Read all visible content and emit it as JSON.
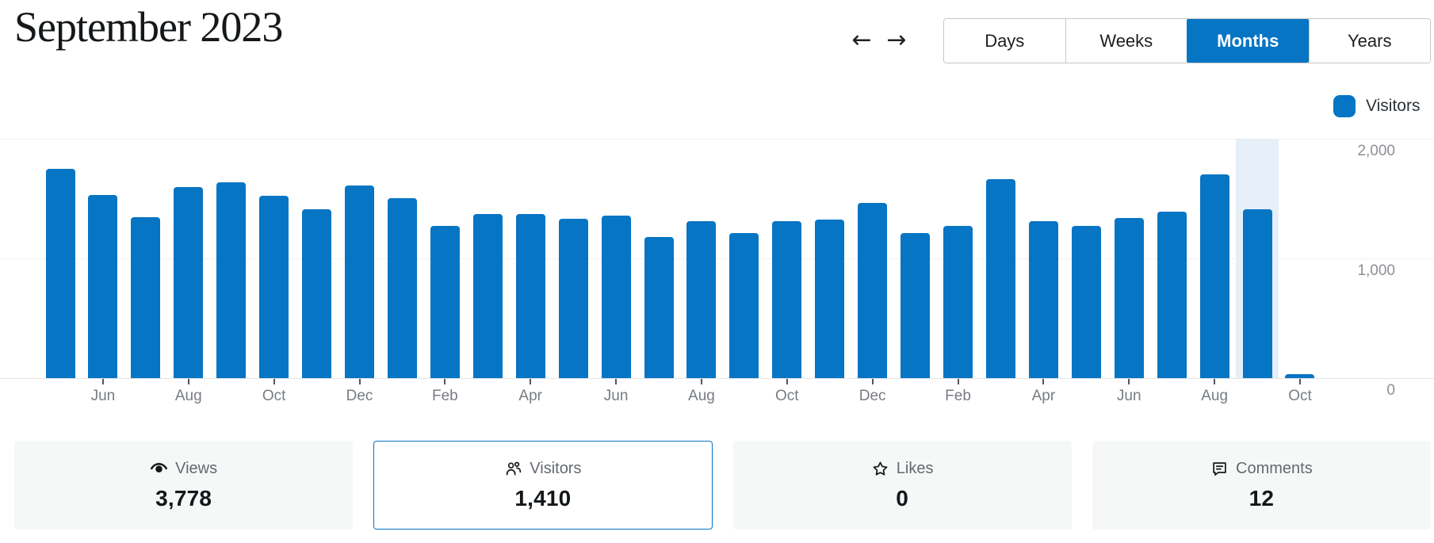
{
  "header": {
    "title": "September 2023"
  },
  "nav": {
    "prev_label": "←",
    "next_label": "→"
  },
  "tabs": [
    {
      "label": "Days",
      "active": false
    },
    {
      "label": "Weeks",
      "active": false
    },
    {
      "label": "Months",
      "active": true
    },
    {
      "label": "Years",
      "active": false
    }
  ],
  "legend": {
    "label": "Visitors",
    "color": "#0675C4"
  },
  "chart_data": {
    "type": "bar",
    "title": "Visitors per month",
    "series_name": "Visitors",
    "x": [
      "May 2021",
      "Jun 2021",
      "Jul 2021",
      "Aug 2021",
      "Sep 2021",
      "Oct 2021",
      "Nov 2021",
      "Dec 2021",
      "Jan 2022",
      "Feb 2022",
      "Mar 2022",
      "Apr 2022",
      "May 2022",
      "Jun 2022",
      "Jul 2022",
      "Aug 2022",
      "Sep 2022",
      "Oct 2022",
      "Nov 2022",
      "Dec 2022",
      "Jan 2023",
      "Feb 2023",
      "Mar 2023",
      "Apr 2023",
      "May 2023",
      "Jun 2023",
      "Jul 2023",
      "Aug 2023",
      "Sep 2023",
      "Oct 2023"
    ],
    "values": [
      1750,
      1530,
      1345,
      1595,
      1635,
      1520,
      1410,
      1610,
      1505,
      1270,
      1370,
      1370,
      1330,
      1355,
      1180,
      1310,
      1210,
      1310,
      1325,
      1465,
      1210,
      1270,
      1660,
      1310,
      1270,
      1340,
      1390,
      1700,
      1410,
      30
    ],
    "x_tick_labels": [
      "Jun",
      "Aug",
      "Oct",
      "Dec",
      "Feb",
      "Apr",
      "Jun",
      "Aug",
      "Oct",
      "Dec",
      "Feb",
      "Apr",
      "Jun",
      "Aug",
      "Oct"
    ],
    "y_ticks": [
      2000,
      1000,
      0
    ],
    "y_tick_labels": [
      "2,000",
      "1,000",
      "0"
    ],
    "ylim": [
      0,
      2000
    ],
    "grid": true,
    "legend_position": "top-right",
    "highlighted_index": 28,
    "highlighted_month": "Sep 2023",
    "bar_color": "#0675C4",
    "highlight_color": "#e6eff7"
  },
  "cards": [
    {
      "label": "Views",
      "value": "3,778",
      "icon": "eye-icon",
      "selected": false
    },
    {
      "label": "Visitors",
      "value": "1,410",
      "icon": "people-icon",
      "selected": true
    },
    {
      "label": "Likes",
      "value": "0",
      "icon": "star-icon",
      "selected": false
    },
    {
      "label": "Comments",
      "value": "12",
      "icon": "comment-icon",
      "selected": false
    }
  ]
}
